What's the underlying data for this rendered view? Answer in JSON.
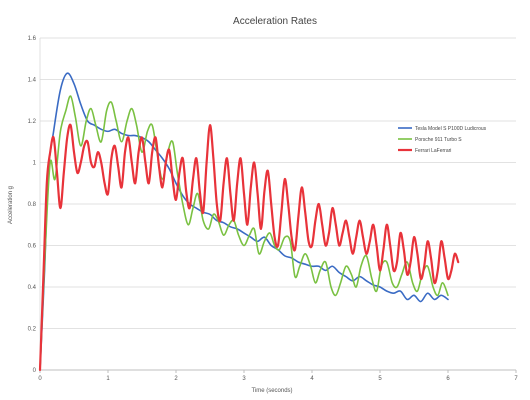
{
  "chart_data": {
    "type": "line",
    "title": "Acceleration Rates",
    "xlabel": "Time (seconds)",
    "ylabel": "Acceleration g",
    "xlim": [
      0,
      7
    ],
    "ylim": [
      0,
      1.6
    ],
    "x_ticks": [
      0,
      1,
      2,
      3,
      4,
      5,
      6,
      7
    ],
    "y_ticks": [
      0,
      0.2,
      0.4,
      0.6,
      0.8,
      1,
      1.2,
      1.4,
      1.6
    ],
    "y_tick_labels": [
      "0",
      "0.2",
      "0.4",
      "0.6",
      "0.8",
      "1",
      "1.2",
      "1.4",
      "1.6"
    ],
    "grid": true,
    "legend_position": "right",
    "series": [
      {
        "name": "Tesla Model S P100D Ludicrous",
        "color": "#3a6bc4",
        "stroke_width": 1.6,
        "points": [
          [
            0,
            0
          ],
          [
            0.07,
            0.5
          ],
          [
            0.12,
            0.95
          ],
          [
            0.2,
            1.15
          ],
          [
            0.3,
            1.35
          ],
          [
            0.4,
            1.43
          ],
          [
            0.5,
            1.38
          ],
          [
            0.6,
            1.28
          ],
          [
            0.7,
            1.2
          ],
          [
            0.8,
            1.18
          ],
          [
            0.9,
            1.16
          ],
          [
            1.0,
            1.15
          ],
          [
            1.1,
            1.16
          ],
          [
            1.2,
            1.14
          ],
          [
            1.3,
            1.13
          ],
          [
            1.4,
            1.13
          ],
          [
            1.5,
            1.12
          ],
          [
            1.6,
            1.1
          ],
          [
            1.7,
            1.06
          ],
          [
            1.8,
            1.02
          ],
          [
            1.9,
            0.97
          ],
          [
            2.0,
            0.9
          ],
          [
            2.1,
            0.84
          ],
          [
            2.2,
            0.8
          ],
          [
            2.3,
            0.78
          ],
          [
            2.4,
            0.76
          ],
          [
            2.5,
            0.75
          ],
          [
            2.6,
            0.72
          ],
          [
            2.7,
            0.71
          ],
          [
            2.8,
            0.69
          ],
          [
            2.9,
            0.68
          ],
          [
            3.0,
            0.66
          ],
          [
            3.1,
            0.64
          ],
          [
            3.2,
            0.62
          ],
          [
            3.3,
            0.64
          ],
          [
            3.4,
            0.6
          ],
          [
            3.5,
            0.58
          ],
          [
            3.6,
            0.55
          ],
          [
            3.7,
            0.54
          ],
          [
            3.8,
            0.52
          ],
          [
            3.9,
            0.51
          ],
          [
            4.0,
            0.5
          ],
          [
            4.1,
            0.5
          ],
          [
            4.2,
            0.48
          ],
          [
            4.3,
            0.5
          ],
          [
            4.4,
            0.47
          ],
          [
            4.5,
            0.45
          ],
          [
            4.6,
            0.43
          ],
          [
            4.7,
            0.45
          ],
          [
            4.8,
            0.43
          ],
          [
            4.9,
            0.41
          ],
          [
            5.0,
            0.4
          ],
          [
            5.1,
            0.38
          ],
          [
            5.2,
            0.37
          ],
          [
            5.3,
            0.38
          ],
          [
            5.4,
            0.34
          ],
          [
            5.5,
            0.36
          ],
          [
            5.6,
            0.33
          ],
          [
            5.7,
            0.37
          ],
          [
            5.8,
            0.34
          ],
          [
            5.9,
            0.36
          ],
          [
            6.0,
            0.34
          ]
        ]
      },
      {
        "name": "Porsche 911 Turbo S",
        "color": "#7ac142",
        "stroke_width": 1.6,
        "points": [
          [
            0,
            0
          ],
          [
            0.08,
            0.6
          ],
          [
            0.15,
            1.0
          ],
          [
            0.22,
            0.92
          ],
          [
            0.3,
            1.15
          ],
          [
            0.38,
            1.25
          ],
          [
            0.45,
            1.32
          ],
          [
            0.52,
            1.22
          ],
          [
            0.6,
            1.08
          ],
          [
            0.68,
            1.2
          ],
          [
            0.75,
            1.26
          ],
          [
            0.82,
            1.18
          ],
          [
            0.9,
            1.1
          ],
          [
            0.98,
            1.25
          ],
          [
            1.05,
            1.29
          ],
          [
            1.12,
            1.2
          ],
          [
            1.2,
            1.1
          ],
          [
            1.28,
            1.2
          ],
          [
            1.35,
            1.26
          ],
          [
            1.42,
            1.18
          ],
          [
            1.5,
            1.05
          ],
          [
            1.58,
            1.15
          ],
          [
            1.65,
            1.18
          ],
          [
            1.72,
            1.05
          ],
          [
            1.8,
            0.92
          ],
          [
            1.88,
            1.05
          ],
          [
            1.95,
            1.1
          ],
          [
            2.02,
            0.95
          ],
          [
            2.1,
            0.8
          ],
          [
            2.18,
            0.7
          ],
          [
            2.25,
            0.78
          ],
          [
            2.32,
            0.85
          ],
          [
            2.4,
            0.72
          ],
          [
            2.48,
            0.68
          ],
          [
            2.55,
            0.75
          ],
          [
            2.62,
            0.72
          ],
          [
            2.7,
            0.65
          ],
          [
            2.78,
            0.7
          ],
          [
            2.85,
            0.72
          ],
          [
            2.92,
            0.65
          ],
          [
            3.0,
            0.6
          ],
          [
            3.08,
            0.65
          ],
          [
            3.15,
            0.68
          ],
          [
            3.22,
            0.56
          ],
          [
            3.3,
            0.62
          ],
          [
            3.38,
            0.66
          ],
          [
            3.45,
            0.6
          ],
          [
            3.52,
            0.58
          ],
          [
            3.6,
            0.64
          ],
          [
            3.68,
            0.62
          ],
          [
            3.75,
            0.45
          ],
          [
            3.82,
            0.5
          ],
          [
            3.9,
            0.56
          ],
          [
            3.98,
            0.5
          ],
          [
            4.05,
            0.42
          ],
          [
            4.12,
            0.48
          ],
          [
            4.2,
            0.52
          ],
          [
            4.28,
            0.4
          ],
          [
            4.35,
            0.36
          ],
          [
            4.42,
            0.42
          ],
          [
            4.5,
            0.5
          ],
          [
            4.58,
            0.46
          ],
          [
            4.65,
            0.4
          ],
          [
            4.72,
            0.5
          ],
          [
            4.8,
            0.55
          ],
          [
            4.88,
            0.44
          ],
          [
            4.95,
            0.38
          ],
          [
            5.02,
            0.5
          ],
          [
            5.1,
            0.52
          ],
          [
            5.18,
            0.42
          ],
          [
            5.25,
            0.4
          ],
          [
            5.32,
            0.46
          ],
          [
            5.4,
            0.52
          ],
          [
            5.48,
            0.42
          ],
          [
            5.55,
            0.38
          ],
          [
            5.62,
            0.46
          ],
          [
            5.7,
            0.5
          ],
          [
            5.78,
            0.4
          ],
          [
            5.85,
            0.36
          ],
          [
            5.92,
            0.42
          ],
          [
            6.0,
            0.36
          ]
        ]
      },
      {
        "name": "Ferrari LaFerrari",
        "color": "#e8333a",
        "stroke_width": 2.2,
        "points": [
          [
            0,
            0
          ],
          [
            0.05,
            0.45
          ],
          [
            0.1,
            0.9
          ],
          [
            0.15,
            1.05
          ],
          [
            0.2,
            1.12
          ],
          [
            0.25,
            0.95
          ],
          [
            0.3,
            0.78
          ],
          [
            0.35,
            0.95
          ],
          [
            0.4,
            1.12
          ],
          [
            0.45,
            1.18
          ],
          [
            0.5,
            1.05
          ],
          [
            0.55,
            0.95
          ],
          [
            0.6,
            1.0
          ],
          [
            0.65,
            1.08
          ],
          [
            0.7,
            1.1
          ],
          [
            0.75,
            1.0
          ],
          [
            0.8,
            0.98
          ],
          [
            0.85,
            1.05
          ],
          [
            0.9,
            1.0
          ],
          [
            0.95,
            0.9
          ],
          [
            1.0,
            0.85
          ],
          [
            1.05,
            1.02
          ],
          [
            1.1,
            1.08
          ],
          [
            1.15,
            0.98
          ],
          [
            1.2,
            0.88
          ],
          [
            1.25,
            1.05
          ],
          [
            1.3,
            1.12
          ],
          [
            1.35,
            1.0
          ],
          [
            1.4,
            0.9
          ],
          [
            1.45,
            1.05
          ],
          [
            1.5,
            1.12
          ],
          [
            1.55,
            1.0
          ],
          [
            1.6,
            0.9
          ],
          [
            1.65,
            1.05
          ],
          [
            1.7,
            1.12
          ],
          [
            1.75,
            0.98
          ],
          [
            1.8,
            0.88
          ],
          [
            1.85,
            1.0
          ],
          [
            1.9,
            1.06
          ],
          [
            1.95,
            0.92
          ],
          [
            2.0,
            0.82
          ],
          [
            2.05,
            0.95
          ],
          [
            2.1,
            1.02
          ],
          [
            2.15,
            0.86
          ],
          [
            2.2,
            0.78
          ],
          [
            2.25,
            0.92
          ],
          [
            2.3,
            1.02
          ],
          [
            2.35,
            0.86
          ],
          [
            2.4,
            0.76
          ],
          [
            2.45,
            1.0
          ],
          [
            2.5,
            1.18
          ],
          [
            2.55,
            1.02
          ],
          [
            2.6,
            0.8
          ],
          [
            2.65,
            0.72
          ],
          [
            2.7,
            0.9
          ],
          [
            2.75,
            1.02
          ],
          [
            2.8,
            0.85
          ],
          [
            2.85,
            0.72
          ],
          [
            2.9,
            0.9
          ],
          [
            2.95,
            1.02
          ],
          [
            3.0,
            0.85
          ],
          [
            3.05,
            0.7
          ],
          [
            3.1,
            0.88
          ],
          [
            3.15,
            1.0
          ],
          [
            3.2,
            0.85
          ],
          [
            3.25,
            0.68
          ],
          [
            3.3,
            0.86
          ],
          [
            3.35,
            0.96
          ],
          [
            3.4,
            0.8
          ],
          [
            3.45,
            0.64
          ],
          [
            3.5,
            0.6
          ],
          [
            3.55,
            0.76
          ],
          [
            3.6,
            0.92
          ],
          [
            3.65,
            0.8
          ],
          [
            3.7,
            0.64
          ],
          [
            3.75,
            0.58
          ],
          [
            3.8,
            0.74
          ],
          [
            3.85,
            0.88
          ],
          [
            3.9,
            0.76
          ],
          [
            3.95,
            0.62
          ],
          [
            4.0,
            0.6
          ],
          [
            4.05,
            0.72
          ],
          [
            4.1,
            0.8
          ],
          [
            4.15,
            0.7
          ],
          [
            4.2,
            0.6
          ],
          [
            4.25,
            0.66
          ],
          [
            4.3,
            0.78
          ],
          [
            4.35,
            0.7
          ],
          [
            4.4,
            0.6
          ],
          [
            4.45,
            0.66
          ],
          [
            4.5,
            0.72
          ],
          [
            4.55,
            0.64
          ],
          [
            4.6,
            0.56
          ],
          [
            4.65,
            0.64
          ],
          [
            4.7,
            0.72
          ],
          [
            4.75,
            0.64
          ],
          [
            4.8,
            0.56
          ],
          [
            4.85,
            0.62
          ],
          [
            4.9,
            0.7
          ],
          [
            4.95,
            0.6
          ],
          [
            5.0,
            0.48
          ],
          [
            5.05,
            0.58
          ],
          [
            5.1,
            0.7
          ],
          [
            5.15,
            0.6
          ],
          [
            5.2,
            0.48
          ],
          [
            5.25,
            0.52
          ],
          [
            5.3,
            0.66
          ],
          [
            5.35,
            0.58
          ],
          [
            5.4,
            0.46
          ],
          [
            5.45,
            0.52
          ],
          [
            5.5,
            0.64
          ],
          [
            5.55,
            0.56
          ],
          [
            5.6,
            0.44
          ],
          [
            5.65,
            0.5
          ],
          [
            5.7,
            0.62
          ],
          [
            5.75,
            0.54
          ],
          [
            5.8,
            0.42
          ],
          [
            5.85,
            0.48
          ],
          [
            5.9,
            0.62
          ],
          [
            5.95,
            0.54
          ],
          [
            6.0,
            0.44
          ],
          [
            6.05,
            0.48
          ],
          [
            6.1,
            0.56
          ],
          [
            6.15,
            0.52
          ]
        ]
      }
    ]
  }
}
